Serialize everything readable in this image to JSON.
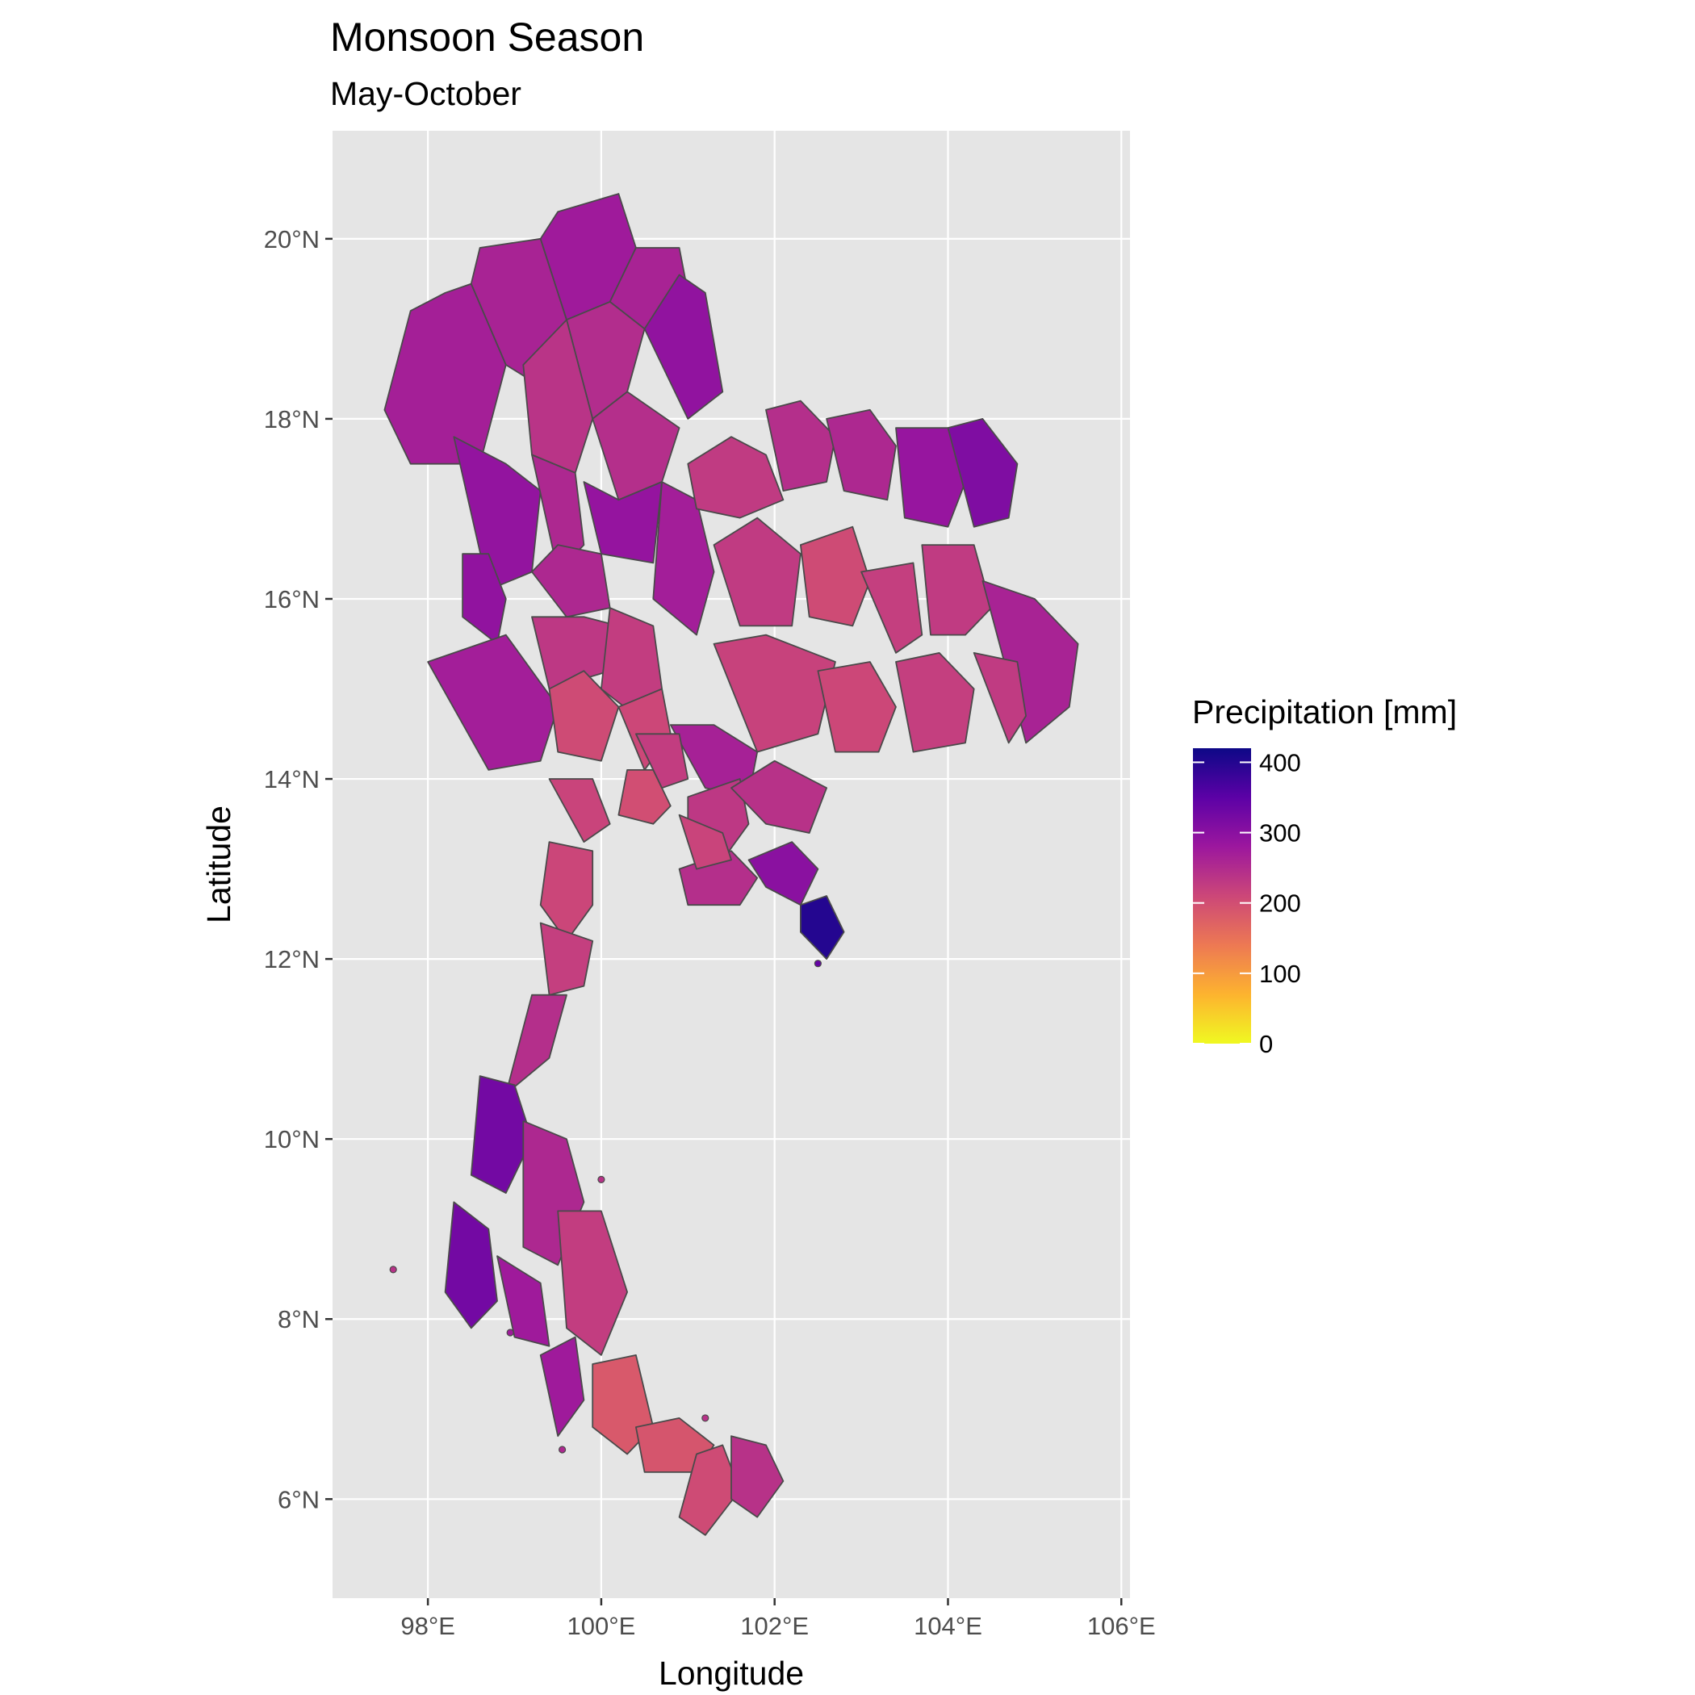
{
  "title": "Monsoon Season",
  "subtitle": "May-October",
  "x_axis": {
    "title": "Longitude",
    "ticks": [
      {
        "value": 98,
        "label": "98°E"
      },
      {
        "value": 100,
        "label": "100°E"
      },
      {
        "value": 102,
        "label": "102°E"
      },
      {
        "value": 104,
        "label": "104°E"
      },
      {
        "value": 106,
        "label": "106°E"
      }
    ],
    "range": [
      96.9,
      106.1
    ]
  },
  "y_axis": {
    "title": "Latitude",
    "ticks": [
      {
        "value": 6,
        "label": "6°N"
      },
      {
        "value": 8,
        "label": "8°N"
      },
      {
        "value": 10,
        "label": "10°N"
      },
      {
        "value": 12,
        "label": "12°N"
      },
      {
        "value": 14,
        "label": "14°N"
      },
      {
        "value": 16,
        "label": "16°N"
      },
      {
        "value": 18,
        "label": "18°N"
      },
      {
        "value": 20,
        "label": "20°N"
      }
    ],
    "range": [
      4.9,
      21.2
    ]
  },
  "legend": {
    "title": "Precipitation [mm]",
    "range": [
      0,
      420
    ],
    "breaks": [
      {
        "value": 0,
        "label": "0"
      },
      {
        "value": 100,
        "label": "100"
      },
      {
        "value": 200,
        "label": "200"
      },
      {
        "value": 300,
        "label": "300"
      },
      {
        "value": 400,
        "label": "400"
      }
    ],
    "colors": [
      "#f0f921",
      "#fdb32f",
      "#ed7953",
      "#cc4778",
      "#9c179e",
      "#5c01a6",
      "#0d0887"
    ]
  },
  "chart_data": {
    "type": "choropleth",
    "title": "Monsoon Season",
    "subtitle": "May-October",
    "xlabel": "Longitude",
    "ylabel": "Latitude",
    "xlim": [
      96.9,
      106.1
    ],
    "ylim": [
      4.9,
      21.2
    ],
    "grid": true,
    "legend_position": "right",
    "fill_variable": "Precipitation [mm]",
    "colorscale": "plasma (reversed)",
    "regions": [
      {
        "lon": [
          97.8,
          97.5,
          97.8,
          98.6,
          98.9,
          98.5,
          98.2
        ],
        "lat": [
          19.2,
          18.1,
          17.5,
          17.5,
          18.6,
          19.5,
          19.4
        ],
        "value": 268
      },
      {
        "lon": [
          98.5,
          98.9,
          99.4,
          99.6,
          99.3,
          98.6,
          98.5
        ],
        "lat": [
          19.5,
          18.6,
          18.3,
          19.1,
          20.0,
          19.9,
          19.5
        ],
        "value": 262
      },
      {
        "lon": [
          99.3,
          99.6,
          100.1,
          100.4,
          100.2,
          99.5,
          99.3
        ],
        "lat": [
          20.0,
          19.1,
          19.3,
          19.9,
          20.5,
          20.3,
          20.0
        ],
        "value": 275
      },
      {
        "lon": [
          100.1,
          100.5,
          101.0,
          100.9,
          100.4,
          100.1
        ],
        "lat": [
          19.3,
          19.0,
          19.4,
          19.9,
          19.9,
          19.3
        ],
        "value": 262
      },
      {
        "lon": [
          100.5,
          101.0,
          101.4,
          101.2,
          100.9,
          100.5
        ],
        "lat": [
          19.0,
          18.0,
          18.3,
          19.4,
          19.6,
          19.0
        ],
        "value": 292
      },
      {
        "lon": [
          99.6,
          100.1,
          100.5,
          100.3,
          99.9,
          99.6
        ],
        "lat": [
          19.1,
          19.3,
          19.0,
          18.3,
          18.0,
          19.1
        ],
        "value": 248
      },
      {
        "lon": [
          99.1,
          99.6,
          99.9,
          99.7,
          99.2,
          99.1
        ],
        "lat": [
          18.6,
          19.1,
          18.0,
          17.4,
          17.6,
          18.6
        ],
        "value": 238
      },
      {
        "lon": [
          99.9,
          100.3,
          100.9,
          100.7,
          100.2,
          99.9
        ],
        "lat": [
          18.0,
          18.3,
          17.9,
          17.3,
          17.1,
          18.0
        ],
        "value": 245
      },
      {
        "lon": [
          98.3,
          98.9,
          99.3,
          99.2,
          98.7,
          98.3
        ],
        "lat": [
          17.8,
          17.5,
          17.2,
          16.3,
          16.1,
          17.8
        ],
        "value": 290
      },
      {
        "lon": [
          99.2,
          99.7,
          99.8,
          99.5,
          99.2
        ],
        "lat": [
          17.6,
          17.4,
          16.6,
          16.3,
          17.6
        ],
        "value": 255
      },
      {
        "lon": [
          99.8,
          100.2,
          100.7,
          100.6,
          100.0,
          99.8
        ],
        "lat": [
          17.3,
          17.1,
          17.3,
          16.4,
          16.5,
          17.3
        ],
        "value": 288
      },
      {
        "lon": [
          100.7,
          101.1,
          101.3,
          101.1,
          100.6,
          100.7
        ],
        "lat": [
          17.3,
          17.1,
          16.3,
          15.6,
          16.0,
          17.3
        ],
        "value": 270
      },
      {
        "lon": [
          99.2,
          99.5,
          100.0,
          100.1,
          99.6,
          99.2
        ],
        "lat": [
          16.3,
          16.6,
          16.5,
          15.9,
          15.8,
          16.3
        ],
        "value": 255
      },
      {
        "lon": [
          98.4,
          98.7,
          98.9,
          98.8,
          98.4,
          98.4
        ],
        "lat": [
          16.5,
          16.5,
          16.0,
          15.5,
          15.8,
          16.5
        ],
        "value": 292
      },
      {
        "lon": [
          98.0,
          98.9,
          99.5,
          99.3,
          98.7,
          98.0
        ],
        "lat": [
          15.3,
          15.6,
          14.8,
          14.2,
          14.1,
          15.3
        ],
        "value": 270
      },
      {
        "lon": [
          99.2,
          99.8,
          100.2,
          100.1,
          99.4,
          99.2
        ],
        "lat": [
          15.8,
          15.8,
          15.7,
          15.2,
          15.0,
          15.8
        ],
        "value": 232
      },
      {
        "lon": [
          99.4,
          99.8,
          100.2,
          100.0,
          99.5,
          99.4
        ],
        "lat": [
          15.0,
          15.2,
          14.8,
          14.2,
          14.3,
          15.0
        ],
        "value": 205
      },
      {
        "lon": [
          100.1,
          100.6,
          100.7,
          100.4,
          100.0,
          100.1
        ],
        "lat": [
          15.9,
          15.7,
          15.0,
          14.7,
          15.0,
          15.9
        ],
        "value": 225
      },
      {
        "lon": [
          100.2,
          100.7,
          100.8,
          100.5,
          100.2
        ],
        "lat": [
          14.8,
          15.0,
          14.5,
          14.1,
          14.8
        ],
        "value": 210
      },
      {
        "lon": [
          100.8,
          101.3,
          101.8,
          101.7,
          101.2,
          100.8
        ],
        "lat": [
          14.6,
          14.6,
          14.3,
          13.8,
          13.9,
          14.6
        ],
        "value": 265
      },
      {
        "lon": [
          101.0,
          101.6,
          101.7,
          101.4,
          101.0,
          101.0
        ],
        "lat": [
          13.8,
          14.0,
          13.5,
          13.1,
          13.3,
          13.8
        ],
        "value": 232
      },
      {
        "lon": [
          101.5,
          102.0,
          102.6,
          102.4,
          101.9,
          101.5
        ],
        "lat": [
          13.9,
          14.2,
          13.9,
          13.4,
          13.5,
          13.9
        ],
        "value": 240
      },
      {
        "lon": [
          101.7,
          102.2,
          102.5,
          102.3,
          101.9,
          101.7
        ],
        "lat": [
          13.1,
          13.3,
          13.0,
          12.6,
          12.8,
          13.1
        ],
        "value": 300
      },
      {
        "lon": [
          102.3,
          102.6,
          102.8,
          102.6,
          102.3,
          102.3
        ],
        "lat": [
          12.6,
          12.7,
          12.3,
          12.0,
          12.3,
          12.6
        ],
        "value": 400
      },
      {
        "lon": [
          100.9,
          101.5,
          101.8,
          101.6,
          101.0,
          100.9
        ],
        "lat": [
          13.0,
          13.2,
          12.9,
          12.6,
          12.6,
          13.0
        ],
        "value": 245
      },
      {
        "lon": [
          100.9,
          101.4,
          101.5,
          101.1,
          100.9
        ],
        "lat": [
          13.6,
          13.4,
          13.1,
          13.0,
          13.6
        ],
        "value": 215
      },
      {
        "lon": [
          99.4,
          99.9,
          100.1,
          99.8,
          99.4
        ],
        "lat": [
          14.0,
          14.0,
          13.5,
          13.3,
          14.0
        ],
        "value": 215
      },
      {
        "lon": [
          99.4,
          99.9,
          99.9,
          99.6,
          99.3,
          99.4
        ],
        "lat": [
          13.3,
          13.2,
          12.6,
          12.2,
          12.6,
          13.3
        ],
        "value": 212
      },
      {
        "lon": [
          99.3,
          99.9,
          99.8,
          99.4,
          99.3
        ],
        "lat": [
          12.4,
          12.2,
          11.7,
          11.6,
          12.4
        ],
        "value": 222
      },
      {
        "lon": [
          99.2,
          99.6,
          99.4,
          98.9,
          99.2
        ],
        "lat": [
          11.6,
          11.6,
          10.9,
          10.5,
          11.6
        ],
        "value": 245
      },
      {
        "lon": [
          98.6,
          99.0,
          99.2,
          98.9,
          98.5,
          98.6
        ],
        "lat": [
          10.7,
          10.6,
          10.0,
          9.4,
          9.6,
          10.7
        ],
        "value": 325
      },
      {
        "lon": [
          99.1,
          99.6,
          99.8,
          99.5,
          99.1,
          99.1
        ],
        "lat": [
          10.2,
          10.0,
          9.3,
          8.6,
          8.8,
          10.2
        ],
        "value": 255
      },
      {
        "lon": [
          98.3,
          98.7,
          98.8,
          98.5,
          98.2,
          98.3
        ],
        "lat": [
          9.3,
          9.0,
          8.2,
          7.9,
          8.3,
          9.3
        ],
        "value": 325
      },
      {
        "lon": [
          98.8,
          99.3,
          99.4,
          99.0,
          98.8
        ],
        "lat": [
          8.7,
          8.4,
          7.7,
          7.8,
          8.7
        ],
        "value": 275
      },
      {
        "lon": [
          99.5,
          100.0,
          100.3,
          100.0,
          99.6,
          99.5
        ],
        "lat": [
          9.2,
          9.2,
          8.3,
          7.6,
          7.9,
          9.2
        ],
        "value": 225
      },
      {
        "lon": [
          99.3,
          99.7,
          99.8,
          99.5,
          99.3
        ],
        "lat": [
          7.6,
          7.8,
          7.1,
          6.7,
          7.6
        ],
        "value": 275
      },
      {
        "lon": [
          99.9,
          100.4,
          100.6,
          100.3,
          99.9,
          99.9
        ],
        "lat": [
          7.5,
          7.6,
          6.8,
          6.5,
          6.8,
          7.5
        ],
        "value": 185
      },
      {
        "lon": [
          100.4,
          100.9,
          101.3,
          101.1,
          100.5,
          100.4
        ],
        "lat": [
          6.8,
          6.9,
          6.6,
          6.3,
          6.3,
          6.8
        ],
        "value": 190
      },
      {
        "lon": [
          101.1,
          101.4,
          101.6,
          101.2,
          100.9,
          101.1
        ],
        "lat": [
          6.5,
          6.6,
          6.1,
          5.6,
          5.8,
          6.5
        ],
        "value": 205
      },
      {
        "lon": [
          101.5,
          101.9,
          102.1,
          101.8,
          101.5,
          101.5
        ],
        "lat": [
          6.7,
          6.6,
          6.2,
          5.8,
          6.0,
          6.7
        ],
        "value": 240
      },
      {
        "lon": [
          101.0,
          101.5,
          101.9,
          102.1,
          101.6,
          101.1,
          101.0
        ],
        "lat": [
          17.5,
          17.8,
          17.6,
          17.1,
          16.9,
          17.0,
          17.5
        ],
        "value": 228
      },
      {
        "lon": [
          101.9,
          102.3,
          102.7,
          102.6,
          102.1,
          101.9
        ],
        "lat": [
          18.1,
          18.2,
          17.8,
          17.3,
          17.2,
          18.1
        ],
        "value": 245
      },
      {
        "lon": [
          102.6,
          103.1,
          103.4,
          103.3,
          102.8,
          102.6
        ],
        "lat": [
          18.0,
          18.1,
          17.7,
          17.1,
          17.2,
          18.0
        ],
        "value": 255
      },
      {
        "lon": [
          103.4,
          104.0,
          104.2,
          104.0,
          103.5,
          103.4
        ],
        "lat": [
          17.9,
          17.9,
          17.3,
          16.8,
          16.9,
          17.9
        ],
        "value": 285
      },
      {
        "lon": [
          104.0,
          104.4,
          104.8,
          104.7,
          104.3,
          104.0
        ],
        "lat": [
          17.9,
          18.0,
          17.5,
          16.9,
          16.8,
          17.9
        ],
        "value": 312
      },
      {
        "lon": [
          101.3,
          101.8,
          102.3,
          102.2,
          101.6,
          101.3
        ],
        "lat": [
          16.6,
          16.9,
          16.5,
          15.7,
          15.7,
          16.6
        ],
        "value": 228
      },
      {
        "lon": [
          102.3,
          102.9,
          103.1,
          102.9,
          102.4,
          102.3
        ],
        "lat": [
          16.6,
          16.8,
          16.2,
          15.7,
          15.8,
          16.6
        ],
        "value": 205
      },
      {
        "lon": [
          103.0,
          103.6,
          103.7,
          103.4,
          103.0
        ],
        "lat": [
          16.3,
          16.4,
          15.6,
          15.4,
          16.3
        ],
        "value": 222
      },
      {
        "lon": [
          103.7,
          104.3,
          104.5,
          104.2,
          103.8,
          103.7
        ],
        "lat": [
          16.6,
          16.6,
          15.9,
          15.6,
          15.6,
          16.6
        ],
        "value": 228
      },
      {
        "lon": [
          104.4,
          105.0,
          105.5,
          105.4,
          104.9,
          104.4
        ],
        "lat": [
          16.2,
          16.0,
          15.5,
          14.8,
          14.4,
          16.2
        ],
        "value": 262
      },
      {
        "lon": [
          101.3,
          101.9,
          102.7,
          102.5,
          101.8,
          101.3
        ],
        "lat": [
          15.5,
          15.6,
          15.3,
          14.5,
          14.3,
          15.5
        ],
        "value": 218
      },
      {
        "lon": [
          102.5,
          103.1,
          103.4,
          103.2,
          102.7,
          102.5
        ],
        "lat": [
          15.2,
          15.3,
          14.8,
          14.3,
          14.3,
          15.2
        ],
        "value": 210
      },
      {
        "lon": [
          103.4,
          103.9,
          104.3,
          104.2,
          103.6,
          103.4
        ],
        "lat": [
          15.3,
          15.4,
          15.0,
          14.4,
          14.3,
          15.3
        ],
        "value": 222
      },
      {
        "lon": [
          104.3,
          104.8,
          104.9,
          104.7,
          104.3
        ],
        "lat": [
          15.4,
          15.3,
          14.7,
          14.4,
          15.4
        ],
        "value": 228
      },
      {
        "lon": [
          100.3,
          100.6,
          100.8,
          100.6,
          100.2,
          100.3
        ],
        "lat": [
          14.1,
          14.1,
          13.7,
          13.5,
          13.6,
          14.1
        ],
        "value": 200
      },
      {
        "lon": [
          100.4,
          100.9,
          101.0,
          100.7,
          100.4
        ],
        "lat": [
          14.5,
          14.5,
          14.0,
          13.9,
          14.5
        ],
        "value": 225
      }
    ]
  }
}
